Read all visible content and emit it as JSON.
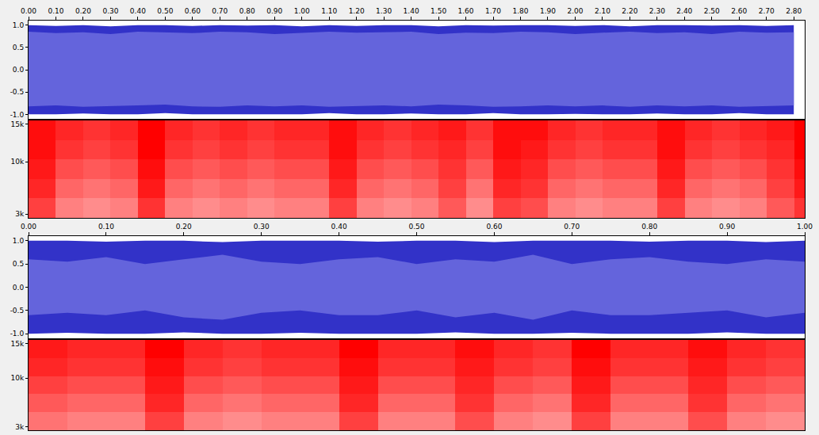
{
  "chart_data": [
    {
      "type": "area",
      "colors": [
        "#3232c8",
        "#6464dc"
      ],
      "grid": false,
      "xlim": [
        0,
        2.84
      ],
      "xticks": [
        {
          "value": 0,
          "label": "0.00"
        },
        {
          "value": 0.1,
          "label": "0.10"
        },
        {
          "value": 0.2,
          "label": "0.20"
        },
        {
          "value": 0.3,
          "label": "0.30"
        },
        {
          "value": 0.4,
          "label": "0.40"
        },
        {
          "value": 0.5,
          "label": "0.50"
        },
        {
          "value": 0.6,
          "label": "0.60"
        },
        {
          "value": 0.7,
          "label": "0.70"
        },
        {
          "value": 0.8,
          "label": "0.80"
        },
        {
          "value": 0.9,
          "label": "0.90"
        },
        {
          "value": 1,
          "label": "1.00"
        },
        {
          "value": 1.1,
          "label": "1.10"
        },
        {
          "value": 1.2,
          "label": "1.20"
        },
        {
          "value": 1.3,
          "label": "1.30"
        },
        {
          "value": 1.4,
          "label": "1.40"
        },
        {
          "value": 1.5,
          "label": "1.50"
        },
        {
          "value": 1.6,
          "label": "1.60"
        },
        {
          "value": 1.7,
          "label": "1.70"
        },
        {
          "value": 1.8,
          "label": "1.80"
        },
        {
          "value": 1.9,
          "label": "1.90"
        },
        {
          "value": 2,
          "label": "2.00"
        },
        {
          "value": 2.1,
          "label": "2.10"
        },
        {
          "value": 2.2,
          "label": "2.20"
        },
        {
          "value": 2.3,
          "label": "2.30"
        },
        {
          "value": 2.4,
          "label": "2.40"
        },
        {
          "value": 2.5,
          "label": "2.50"
        },
        {
          "value": 2.6,
          "label": "2.60"
        },
        {
          "value": 2.7,
          "label": "2.70"
        },
        {
          "value": 2.8,
          "label": "2.80"
        }
      ],
      "ylim": [
        -1.1,
        1.1
      ],
      "yticks": [
        {
          "value": 1,
          "label": "1.0"
        },
        0.5,
        {
          "value": 0,
          "label": "0.0"
        },
        -0.5,
        {
          "value": -1,
          "label": "-1.0"
        }
      ],
      "x": [
        0,
        0.1,
        0.2,
        0.3,
        0.4,
        0.5,
        0.6,
        0.7,
        0.8,
        0.9,
        1,
        1.1,
        1.2,
        1.3,
        1.4,
        1.5,
        1.6,
        1.7,
        1.8,
        1.9,
        2,
        2.1,
        2.2,
        2.3,
        2.4,
        2.5,
        2.6,
        2.7,
        2.8
      ],
      "peak_max": [
        1,
        0.98,
        1,
        0.97,
        1,
        1,
        0.98,
        1,
        0.99,
        1,
        0.97,
        1,
        0.98,
        1,
        1,
        0.97,
        1,
        0.99,
        1,
        1,
        0.98,
        1,
        0.97,
        1,
        1,
        0.99,
        1,
        0.98,
        1
      ],
      "peak_min": [
        -1,
        -1,
        -0.98,
        -1,
        -1,
        -0.97,
        -1,
        -1,
        -0.99,
        -1,
        -1,
        -0.97,
        -1,
        -1,
        -0.98,
        -1,
        -1,
        -0.97,
        -1,
        -1,
        -0.99,
        -1,
        -1,
        -0.98,
        -1,
        -1,
        -0.97,
        -1,
        -1
      ],
      "rms_max": [
        0.85,
        0.82,
        0.84,
        0.8,
        0.85,
        0.83,
        0.82,
        0.85,
        0.84,
        0.8,
        0.82,
        0.85,
        0.83,
        0.84,
        0.85,
        0.8,
        0.83,
        0.82,
        0.85,
        0.84,
        0.8,
        0.83,
        0.85,
        0.82,
        0.84,
        0.8,
        0.85,
        0.83,
        0.84
      ],
      "rms_min": [
        -0.82,
        -0.8,
        -0.83,
        -0.82,
        -0.8,
        -0.78,
        -0.82,
        -0.83,
        -0.8,
        -0.82,
        -0.8,
        -0.83,
        -0.82,
        -0.8,
        -0.82,
        -0.78,
        -0.8,
        -0.83,
        -0.82,
        -0.8,
        -0.82,
        -0.8,
        -0.83,
        -0.8,
        -0.82,
        -0.8,
        -0.83,
        -0.82,
        -0.8
      ]
    },
    {
      "type": "heatmap",
      "colors": [
        "#ffffff",
        "#ff0000"
      ],
      "grid": false,
      "tick_labels": "y",
      "xlim": [
        0,
        2.84
      ],
      "ylim": [
        2500,
        15500
      ],
      "yticks": [
        {
          "value": 15000,
          "label": "15k"
        },
        {
          "value": 10000,
          "label": "10k"
        },
        {
          "value": 3000,
          "label": "3k"
        }
      ],
      "zlim": [
        0,
        1
      ],
      "x": [
        0.05,
        0.15,
        0.25,
        0.35,
        0.45,
        0.55,
        0.65,
        0.75,
        0.85,
        0.95,
        1.05,
        1.15,
        1.25,
        1.35,
        1.45,
        1.55,
        1.65,
        1.75,
        1.85,
        1.95,
        2.05,
        2.15,
        2.25,
        2.35,
        2.45,
        2.55,
        2.65,
        2.75,
        2.85
      ],
      "y": [
        3800,
        6400,
        9000,
        11600,
        14200
      ],
      "z": [
        [
          0.75,
          0.5,
          0.45,
          0.5,
          0.8,
          0.5,
          0.45,
          0.5,
          0.45,
          0.5,
          0.5,
          0.75,
          0.5,
          0.45,
          0.5,
          0.65,
          0.45,
          0.75,
          0.7,
          0.5,
          0.45,
          0.5,
          0.5,
          0.75,
          0.5,
          0.45,
          0.5,
          0.65,
          0.8
        ],
        [
          0.85,
          0.6,
          0.55,
          0.6,
          0.9,
          0.6,
          0.55,
          0.6,
          0.55,
          0.6,
          0.6,
          0.85,
          0.6,
          0.55,
          0.6,
          0.75,
          0.55,
          0.85,
          0.8,
          0.6,
          0.55,
          0.6,
          0.6,
          0.85,
          0.6,
          0.55,
          0.6,
          0.75,
          0.9
        ],
        [
          0.9,
          0.7,
          0.65,
          0.7,
          0.95,
          0.7,
          0.65,
          0.7,
          0.65,
          0.7,
          0.7,
          0.9,
          0.7,
          0.65,
          0.7,
          0.8,
          0.65,
          0.9,
          0.85,
          0.7,
          0.65,
          0.7,
          0.7,
          0.9,
          0.7,
          0.65,
          0.7,
          0.8,
          0.95
        ],
        [
          0.95,
          0.8,
          0.75,
          0.8,
          1,
          0.8,
          0.75,
          0.8,
          0.75,
          0.8,
          0.8,
          0.95,
          0.8,
          0.75,
          0.8,
          0.85,
          0.75,
          0.95,
          0.9,
          0.8,
          0.75,
          0.8,
          0.8,
          0.95,
          0.8,
          0.75,
          0.8,
          0.85,
          1
        ],
        [
          0.95,
          0.85,
          0.8,
          0.85,
          1,
          0.85,
          0.8,
          0.85,
          0.8,
          0.85,
          0.85,
          0.95,
          0.85,
          0.8,
          0.85,
          0.9,
          0.8,
          0.95,
          0.95,
          0.85,
          0.8,
          0.85,
          0.85,
          0.95,
          0.85,
          0.8,
          0.85,
          0.9,
          1
        ]
      ]
    },
    {
      "type": "area",
      "colors": [
        "#3232c8",
        "#6464dc"
      ],
      "grid": false,
      "xlim": [
        0,
        1
      ],
      "xticks": [
        {
          "value": 0,
          "label": "0.00"
        },
        {
          "value": 0.1,
          "label": "0.10"
        },
        {
          "value": 0.2,
          "label": "0.20"
        },
        {
          "value": 0.3,
          "label": "0.30"
        },
        {
          "value": 0.4,
          "label": "0.40"
        },
        {
          "value": 0.5,
          "label": "0.50"
        },
        {
          "value": 0.6,
          "label": "0.60"
        },
        {
          "value": 0.7,
          "label": "0.70"
        },
        {
          "value": 0.8,
          "label": "0.80"
        },
        {
          "value": 0.9,
          "label": "0.90"
        },
        {
          "value": 1,
          "label": "1.00"
        }
      ],
      "ylim": [
        -1.1,
        1.1
      ],
      "yticks": [
        {
          "value": 1,
          "label": "1.0"
        },
        0.5,
        {
          "value": 0,
          "label": "0.0"
        },
        -0.5,
        {
          "value": -1,
          "label": "-1.0"
        }
      ],
      "x": [
        0,
        0.05,
        0.1,
        0.15,
        0.2,
        0.25,
        0.3,
        0.35,
        0.4,
        0.45,
        0.5,
        0.55,
        0.6,
        0.65,
        0.7,
        0.75,
        0.8,
        0.85,
        0.9,
        0.95,
        1
      ],
      "peak_max": [
        1,
        1,
        0.98,
        1,
        1,
        0.97,
        1,
        1,
        1,
        0.98,
        1,
        1,
        0.97,
        1,
        1,
        1,
        0.98,
        1,
        1,
        0.97,
        1
      ],
      "peak_min": [
        -1,
        -0.98,
        -1,
        -1,
        -0.97,
        -1,
        -1,
        -0.98,
        -1,
        -1,
        -1,
        -0.97,
        -1,
        -1,
        -0.98,
        -1,
        -1,
        -1,
        -0.97,
        -1,
        -1
      ],
      "rms_max": [
        0.6,
        0.55,
        0.65,
        0.5,
        0.6,
        0.7,
        0.55,
        0.5,
        0.6,
        0.65,
        0.5,
        0.6,
        0.55,
        0.7,
        0.5,
        0.6,
        0.65,
        0.55,
        0.5,
        0.6,
        0.55
      ],
      "rms_min": [
        -0.6,
        -0.55,
        -0.6,
        -0.5,
        -0.65,
        -0.7,
        -0.55,
        -0.5,
        -0.6,
        -0.6,
        -0.5,
        -0.65,
        -0.55,
        -0.7,
        -0.5,
        -0.6,
        -0.6,
        -0.55,
        -0.5,
        -0.65,
        -0.55
      ]
    },
    {
      "type": "heatmap",
      "colors": [
        "#ffffff",
        "#ff0000"
      ],
      "grid": false,
      "tick_labels": "y",
      "xlim": [
        0,
        1
      ],
      "ylim": [
        2500,
        15500
      ],
      "yticks": [
        {
          "value": 15000,
          "label": "15k"
        },
        {
          "value": 10000,
          "label": "10k"
        },
        {
          "value": 3000,
          "label": "3k"
        }
      ],
      "zlim": [
        0,
        1
      ],
      "x": [
        0.025,
        0.075,
        0.125,
        0.175,
        0.225,
        0.275,
        0.325,
        0.375,
        0.425,
        0.475,
        0.525,
        0.575,
        0.625,
        0.675,
        0.725,
        0.775,
        0.825,
        0.875,
        0.925,
        0.975
      ],
      "y": [
        3800,
        6400,
        9000,
        11600,
        14200
      ],
      "z": [
        [
          0.55,
          0.5,
          0.5,
          0.75,
          0.5,
          0.45,
          0.5,
          0.5,
          0.75,
          0.5,
          0.5,
          0.7,
          0.5,
          0.45,
          0.75,
          0.5,
          0.5,
          0.7,
          0.5,
          0.45
        ],
        [
          0.65,
          0.6,
          0.6,
          0.85,
          0.6,
          0.55,
          0.6,
          0.6,
          0.85,
          0.6,
          0.6,
          0.8,
          0.6,
          0.55,
          0.85,
          0.6,
          0.6,
          0.8,
          0.6,
          0.55
        ],
        [
          0.75,
          0.7,
          0.7,
          0.9,
          0.7,
          0.65,
          0.7,
          0.7,
          0.9,
          0.7,
          0.7,
          0.85,
          0.7,
          0.65,
          0.9,
          0.7,
          0.7,
          0.85,
          0.7,
          0.65
        ],
        [
          0.85,
          0.8,
          0.8,
          0.95,
          0.8,
          0.75,
          0.8,
          0.8,
          0.95,
          0.8,
          0.8,
          0.9,
          0.8,
          0.75,
          0.95,
          0.8,
          0.8,
          0.9,
          0.8,
          0.75
        ],
        [
          0.9,
          0.85,
          0.85,
          1,
          0.85,
          0.8,
          0.85,
          0.85,
          1,
          0.85,
          0.85,
          0.95,
          0.85,
          0.8,
          1,
          0.85,
          0.85,
          0.95,
          0.85,
          0.8
        ]
      ]
    }
  ]
}
